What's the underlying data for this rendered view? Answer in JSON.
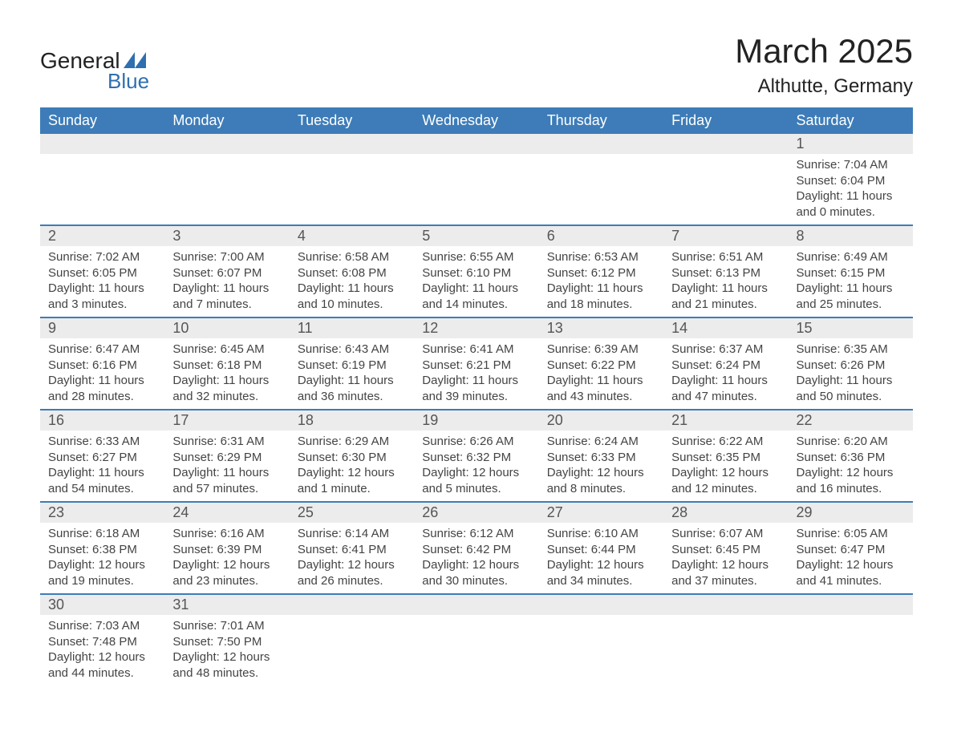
{
  "logo": {
    "text1": "General",
    "text2": "Blue",
    "tri_color": "#2f6fb0"
  },
  "title": "March 2025",
  "location": "Althutte, Germany",
  "header_bg": "#3d7cb8",
  "header_fg": "#ffffff",
  "daynum_bg": "#ececec",
  "divider_color": "#3d7cb8",
  "text_color": "#444444",
  "days_of_week": [
    "Sunday",
    "Monday",
    "Tuesday",
    "Wednesday",
    "Thursday",
    "Friday",
    "Saturday"
  ],
  "weeks": [
    [
      {
        "n": "",
        "sunrise": "",
        "sunset": "",
        "daylight": ""
      },
      {
        "n": "",
        "sunrise": "",
        "sunset": "",
        "daylight": ""
      },
      {
        "n": "",
        "sunrise": "",
        "sunset": "",
        "daylight": ""
      },
      {
        "n": "",
        "sunrise": "",
        "sunset": "",
        "daylight": ""
      },
      {
        "n": "",
        "sunrise": "",
        "sunset": "",
        "daylight": ""
      },
      {
        "n": "",
        "sunrise": "",
        "sunset": "",
        "daylight": ""
      },
      {
        "n": "1",
        "sunrise": "Sunrise: 7:04 AM",
        "sunset": "Sunset: 6:04 PM",
        "daylight": "Daylight: 11 hours and 0 minutes."
      }
    ],
    [
      {
        "n": "2",
        "sunrise": "Sunrise: 7:02 AM",
        "sunset": "Sunset: 6:05 PM",
        "daylight": "Daylight: 11 hours and 3 minutes."
      },
      {
        "n": "3",
        "sunrise": "Sunrise: 7:00 AM",
        "sunset": "Sunset: 6:07 PM",
        "daylight": "Daylight: 11 hours and 7 minutes."
      },
      {
        "n": "4",
        "sunrise": "Sunrise: 6:58 AM",
        "sunset": "Sunset: 6:08 PM",
        "daylight": "Daylight: 11 hours and 10 minutes."
      },
      {
        "n": "5",
        "sunrise": "Sunrise: 6:55 AM",
        "sunset": "Sunset: 6:10 PM",
        "daylight": "Daylight: 11 hours and 14 minutes."
      },
      {
        "n": "6",
        "sunrise": "Sunrise: 6:53 AM",
        "sunset": "Sunset: 6:12 PM",
        "daylight": "Daylight: 11 hours and 18 minutes."
      },
      {
        "n": "7",
        "sunrise": "Sunrise: 6:51 AM",
        "sunset": "Sunset: 6:13 PM",
        "daylight": "Daylight: 11 hours and 21 minutes."
      },
      {
        "n": "8",
        "sunrise": "Sunrise: 6:49 AM",
        "sunset": "Sunset: 6:15 PM",
        "daylight": "Daylight: 11 hours and 25 minutes."
      }
    ],
    [
      {
        "n": "9",
        "sunrise": "Sunrise: 6:47 AM",
        "sunset": "Sunset: 6:16 PM",
        "daylight": "Daylight: 11 hours and 28 minutes."
      },
      {
        "n": "10",
        "sunrise": "Sunrise: 6:45 AM",
        "sunset": "Sunset: 6:18 PM",
        "daylight": "Daylight: 11 hours and 32 minutes."
      },
      {
        "n": "11",
        "sunrise": "Sunrise: 6:43 AM",
        "sunset": "Sunset: 6:19 PM",
        "daylight": "Daylight: 11 hours and 36 minutes."
      },
      {
        "n": "12",
        "sunrise": "Sunrise: 6:41 AM",
        "sunset": "Sunset: 6:21 PM",
        "daylight": "Daylight: 11 hours and 39 minutes."
      },
      {
        "n": "13",
        "sunrise": "Sunrise: 6:39 AM",
        "sunset": "Sunset: 6:22 PM",
        "daylight": "Daylight: 11 hours and 43 minutes."
      },
      {
        "n": "14",
        "sunrise": "Sunrise: 6:37 AM",
        "sunset": "Sunset: 6:24 PM",
        "daylight": "Daylight: 11 hours and 47 minutes."
      },
      {
        "n": "15",
        "sunrise": "Sunrise: 6:35 AM",
        "sunset": "Sunset: 6:26 PM",
        "daylight": "Daylight: 11 hours and 50 minutes."
      }
    ],
    [
      {
        "n": "16",
        "sunrise": "Sunrise: 6:33 AM",
        "sunset": "Sunset: 6:27 PM",
        "daylight": "Daylight: 11 hours and 54 minutes."
      },
      {
        "n": "17",
        "sunrise": "Sunrise: 6:31 AM",
        "sunset": "Sunset: 6:29 PM",
        "daylight": "Daylight: 11 hours and 57 minutes."
      },
      {
        "n": "18",
        "sunrise": "Sunrise: 6:29 AM",
        "sunset": "Sunset: 6:30 PM",
        "daylight": "Daylight: 12 hours and 1 minute."
      },
      {
        "n": "19",
        "sunrise": "Sunrise: 6:26 AM",
        "sunset": "Sunset: 6:32 PM",
        "daylight": "Daylight: 12 hours and 5 minutes."
      },
      {
        "n": "20",
        "sunrise": "Sunrise: 6:24 AM",
        "sunset": "Sunset: 6:33 PM",
        "daylight": "Daylight: 12 hours and 8 minutes."
      },
      {
        "n": "21",
        "sunrise": "Sunrise: 6:22 AM",
        "sunset": "Sunset: 6:35 PM",
        "daylight": "Daylight: 12 hours and 12 minutes."
      },
      {
        "n": "22",
        "sunrise": "Sunrise: 6:20 AM",
        "sunset": "Sunset: 6:36 PM",
        "daylight": "Daylight: 12 hours and 16 minutes."
      }
    ],
    [
      {
        "n": "23",
        "sunrise": "Sunrise: 6:18 AM",
        "sunset": "Sunset: 6:38 PM",
        "daylight": "Daylight: 12 hours and 19 minutes."
      },
      {
        "n": "24",
        "sunrise": "Sunrise: 6:16 AM",
        "sunset": "Sunset: 6:39 PM",
        "daylight": "Daylight: 12 hours and 23 minutes."
      },
      {
        "n": "25",
        "sunrise": "Sunrise: 6:14 AM",
        "sunset": "Sunset: 6:41 PM",
        "daylight": "Daylight: 12 hours and 26 minutes."
      },
      {
        "n": "26",
        "sunrise": "Sunrise: 6:12 AM",
        "sunset": "Sunset: 6:42 PM",
        "daylight": "Daylight: 12 hours and 30 minutes."
      },
      {
        "n": "27",
        "sunrise": "Sunrise: 6:10 AM",
        "sunset": "Sunset: 6:44 PM",
        "daylight": "Daylight: 12 hours and 34 minutes."
      },
      {
        "n": "28",
        "sunrise": "Sunrise: 6:07 AM",
        "sunset": "Sunset: 6:45 PM",
        "daylight": "Daylight: 12 hours and 37 minutes."
      },
      {
        "n": "29",
        "sunrise": "Sunrise: 6:05 AM",
        "sunset": "Sunset: 6:47 PM",
        "daylight": "Daylight: 12 hours and 41 minutes."
      }
    ],
    [
      {
        "n": "30",
        "sunrise": "Sunrise: 7:03 AM",
        "sunset": "Sunset: 7:48 PM",
        "daylight": "Daylight: 12 hours and 44 minutes."
      },
      {
        "n": "31",
        "sunrise": "Sunrise: 7:01 AM",
        "sunset": "Sunset: 7:50 PM",
        "daylight": "Daylight: 12 hours and 48 minutes."
      },
      {
        "n": "",
        "sunrise": "",
        "sunset": "",
        "daylight": ""
      },
      {
        "n": "",
        "sunrise": "",
        "sunset": "",
        "daylight": ""
      },
      {
        "n": "",
        "sunrise": "",
        "sunset": "",
        "daylight": ""
      },
      {
        "n": "",
        "sunrise": "",
        "sunset": "",
        "daylight": ""
      },
      {
        "n": "",
        "sunrise": "",
        "sunset": "",
        "daylight": ""
      }
    ]
  ]
}
